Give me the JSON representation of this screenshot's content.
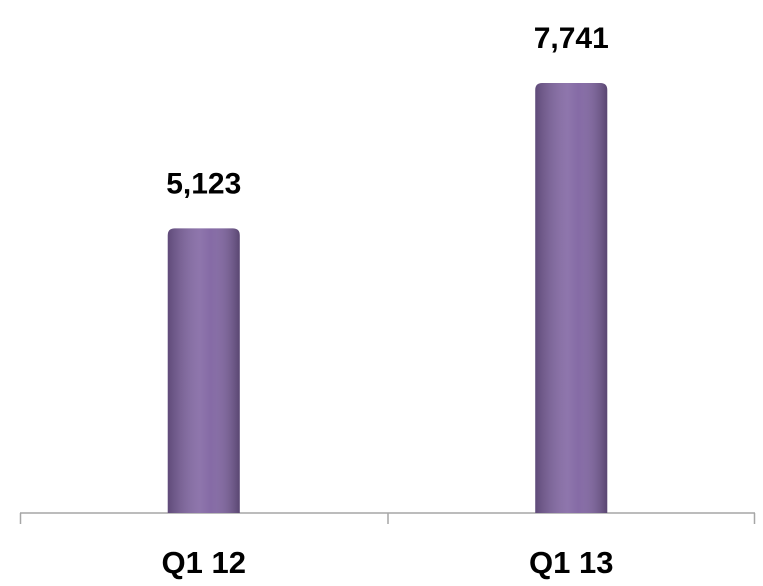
{
  "chart_data": {
    "type": "bar",
    "categories": [
      "Q1 12",
      "Q1 13"
    ],
    "values": [
      5123,
      7741
    ],
    "value_labels": [
      "5,123",
      "7,741"
    ],
    "color": "#7f63a1"
  }
}
